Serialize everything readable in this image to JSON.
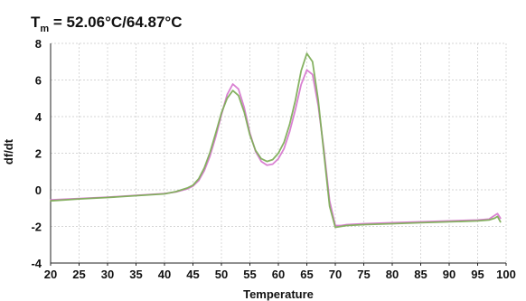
{
  "chart_data": {
    "type": "line",
    "title": {
      "symbol": "T",
      "subscript": "m",
      "rest": " = 52.06°C/64.87°C"
    },
    "xlabel": "Temperature",
    "ylabel": "df/dt",
    "xlim": [
      20,
      100
    ],
    "ylim": [
      -4,
      8
    ],
    "xticks": [
      "20",
      "25",
      "30",
      "35",
      "40",
      "45",
      "50",
      "55",
      "60",
      "65",
      "70",
      "75",
      "80",
      "85",
      "90",
      "95",
      "100"
    ],
    "yticks": [
      "-4",
      "-2",
      "0",
      "2",
      "4",
      "6",
      "8"
    ],
    "grid": true,
    "legend": "none",
    "colors": {
      "series_a": "#d77ad0",
      "series_b": "#7fae5a",
      "grid": "#c8c8c8",
      "axis": "#222222"
    },
    "series": [
      {
        "color_key": "series_a",
        "x": [
          20,
          25,
          30,
          35,
          40,
          42,
          44,
          45,
          46,
          47,
          48,
          49,
          50,
          51,
          52,
          53,
          54,
          55,
          56,
          57,
          58,
          59,
          60,
          61,
          62,
          63,
          64,
          65,
          66,
          67,
          68,
          69,
          70,
          71,
          72,
          75,
          80,
          85,
          90,
          95,
          97,
          98,
          98.5,
          99
        ],
        "y": [
          -0.55,
          -0.48,
          -0.4,
          -0.3,
          -0.2,
          -0.12,
          0.05,
          0.2,
          0.5,
          1.05,
          1.85,
          2.9,
          4.1,
          5.2,
          5.78,
          5.5,
          4.5,
          3.1,
          2.1,
          1.55,
          1.35,
          1.4,
          1.7,
          2.25,
          3.2,
          4.4,
          5.75,
          6.55,
          6.3,
          4.6,
          2.2,
          -0.6,
          -1.95,
          -1.95,
          -1.9,
          -1.85,
          -1.8,
          -1.75,
          -1.7,
          -1.65,
          -1.6,
          -1.4,
          -1.3,
          -1.55
        ]
      },
      {
        "color_key": "series_b",
        "x": [
          20,
          25,
          30,
          35,
          40,
          42,
          44,
          45,
          46,
          47,
          48,
          49,
          50,
          51,
          52,
          53,
          54,
          55,
          56,
          57,
          58,
          59,
          60,
          61,
          62,
          63,
          64,
          65,
          66,
          67,
          68,
          69,
          70,
          71,
          72,
          75,
          80,
          85,
          90,
          95,
          97,
          98,
          98.5,
          99
        ],
        "y": [
          -0.6,
          -0.5,
          -0.42,
          -0.32,
          -0.22,
          -0.1,
          0.1,
          0.25,
          0.6,
          1.2,
          2.05,
          3.1,
          4.2,
          5.0,
          5.42,
          5.15,
          4.25,
          3.0,
          2.15,
          1.7,
          1.55,
          1.65,
          2.0,
          2.6,
          3.6,
          4.9,
          6.5,
          7.45,
          7.0,
          4.9,
          2.0,
          -0.9,
          -2.05,
          -2.0,
          -1.95,
          -1.9,
          -1.85,
          -1.8,
          -1.75,
          -1.7,
          -1.65,
          -1.55,
          -1.45,
          -1.75
        ]
      }
    ]
  }
}
